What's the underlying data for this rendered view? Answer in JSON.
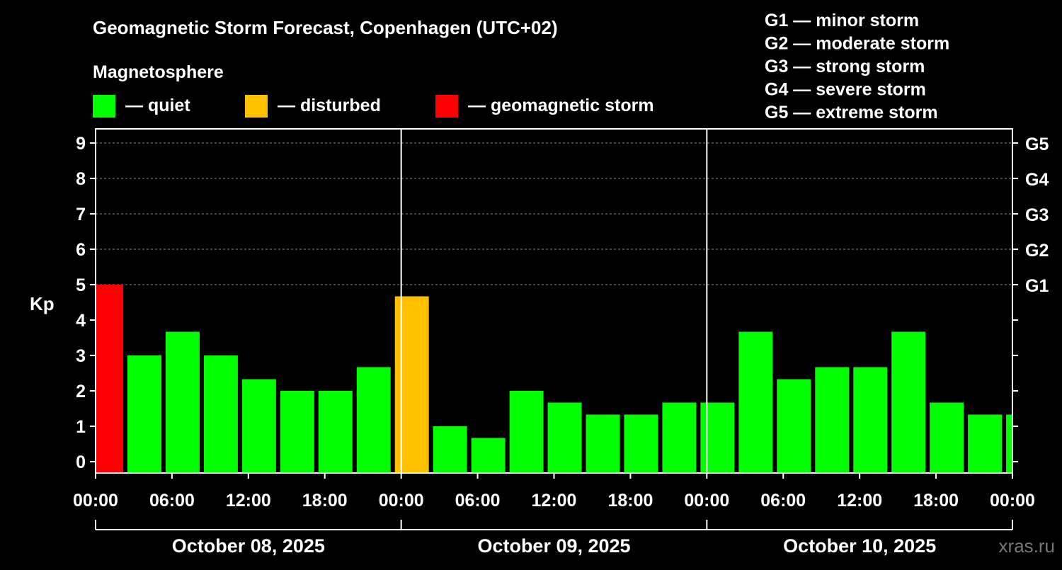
{
  "chart_data": {
    "type": "bar",
    "title": "Geomagnetic Storm Forecast, Copenhagen (UTC+02)",
    "legend_title": "Magnetosphere",
    "legend": [
      {
        "key": "quiet",
        "label": "— quiet",
        "color": "#00ff00"
      },
      {
        "key": "disturbed",
        "label": "— disturbed",
        "color": "#ffc000"
      },
      {
        "key": "storm",
        "label": "— geomagnetic storm",
        "color": "#ff0000"
      }
    ],
    "storm_scale": [
      "G1 — minor storm",
      "G2 — moderate storm",
      "G3 — strong storm",
      "G4 — severe storm",
      "G5 — extreme storm"
    ],
    "ylabel": "Kp",
    "ylim": [
      0,
      9
    ],
    "yticks": [
      "0",
      "1",
      "2",
      "3",
      "4",
      "5",
      "6",
      "7",
      "8",
      "9"
    ],
    "right_ticks": [
      {
        "kp": 5,
        "label": "G1"
      },
      {
        "kp": 6,
        "label": "G2"
      },
      {
        "kp": 7,
        "label": "G3"
      },
      {
        "kp": 8,
        "label": "G4"
      },
      {
        "kp": 9,
        "label": "G5"
      }
    ],
    "xlim_hours": [
      0,
      72
    ],
    "xticks": [
      "00:00",
      "06:00",
      "12:00",
      "18:00",
      "00:00",
      "06:00",
      "12:00",
      "18:00",
      "00:00",
      "06:00",
      "12:00",
      "18:00",
      "00:00"
    ],
    "days": [
      "October 08, 2025",
      "October 09, 2025",
      "October 10, 2025"
    ],
    "bar_start_hours": -0.83,
    "bar_step_hours": 3,
    "values": [
      5,
      3,
      3.67,
      3,
      2.33,
      2,
      2,
      2.67,
      4.67,
      1,
      0.67,
      2,
      1.67,
      1.33,
      1.33,
      1.67,
      1.67,
      3.67,
      2.33,
      2.67,
      2.67,
      3.67,
      1.67,
      1.33,
      1.33
    ],
    "categories": [
      "storm",
      "quiet",
      "quiet",
      "quiet",
      "quiet",
      "quiet",
      "quiet",
      "quiet",
      "disturbed",
      "quiet",
      "quiet",
      "quiet",
      "quiet",
      "quiet",
      "quiet",
      "quiet",
      "quiet",
      "quiet",
      "quiet",
      "quiet",
      "quiet",
      "quiet",
      "quiet",
      "quiet",
      "quiet"
    ],
    "grid": true
  },
  "watermark": "xras.ru"
}
